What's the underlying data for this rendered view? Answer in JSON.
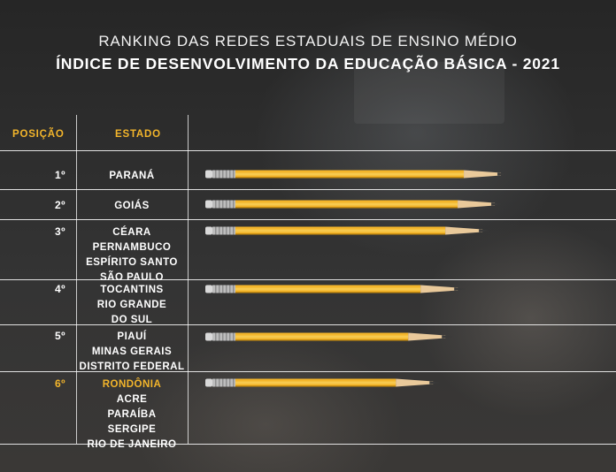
{
  "title_line1": "RANKING DAS REDES ESTADUAIS DE ENSINO MÉDIO",
  "title_line2": "ÍNDICE DE DESENVOLVIMENTO DA EDUCAÇÃO BÁSICA - 2021",
  "headers": {
    "position": "POSIÇÃO",
    "state": "ESTADO"
  },
  "colors": {
    "accent": "#f3b52b",
    "pencil_body": "#f3b52b",
    "text": "#ffffff"
  },
  "chart_data": {
    "type": "bar",
    "orientation": "horizontal",
    "title": "ÍNDICE DE DESENVOLVIMENTO DA EDUCAÇÃO BÁSICA - 2021",
    "categories": [
      "1º",
      "2º",
      "3º",
      "4º",
      "5º",
      "6º"
    ],
    "values": [
      4.9,
      4.8,
      4.6,
      4.2,
      4.0,
      3.8
    ],
    "value_note_unlabeled": true,
    "rows": [
      {
        "position": "1º",
        "states": [
          "PARANÁ"
        ]
      },
      {
        "position": "2º",
        "states": [
          "GOIÁS"
        ]
      },
      {
        "position": "3º",
        "states": [
          "CÉARA",
          "PERNAMBUCO",
          "ESPÍRITO SANTO",
          "SÃO PAULO"
        ]
      },
      {
        "position": "4º",
        "states": [
          "TOCANTINS",
          "RIO GRANDE",
          "DO SUL"
        ]
      },
      {
        "position": "5º",
        "states": [
          "PIAUÍ",
          "MINAS GERAIS",
          "DISTRITO FEDERAL"
        ]
      },
      {
        "position": "6º",
        "states": [
          "RONDÔNIA",
          "ACRE",
          "PARAÍBA",
          "SERGIPE",
          "RIO DE JANEIRO"
        ],
        "highlight_first": true
      }
    ],
    "xlim": [
      0,
      5.2
    ],
    "grid": false,
    "legend": "none"
  }
}
